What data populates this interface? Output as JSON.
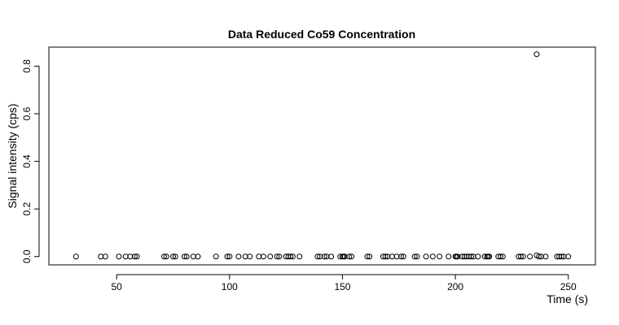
{
  "chart_data": {
    "type": "scatter",
    "title": "Data Reduced Co59 Concentration",
    "xlabel": "Time (s)",
    "ylabel": "Signal intensity (cps)",
    "xlim": [
      20,
      262
    ],
    "ylim": [
      -0.035,
      0.88
    ],
    "xticks": [
      50,
      100,
      150,
      200,
      250
    ],
    "yticks": [
      0.0,
      0.2,
      0.4,
      0.6,
      0.8
    ],
    "xtick_labels": [
      "50",
      "100",
      "150",
      "200",
      "250"
    ],
    "ytick_labels": [
      "0.0",
      "0.2",
      "0.4",
      "0.6",
      "0.8"
    ],
    "marker": "open-circle",
    "grid": false,
    "points": [
      {
        "x": 32,
        "y": 0
      },
      {
        "x": 43,
        "y": 0
      },
      {
        "x": 45,
        "y": 0
      },
      {
        "x": 51,
        "y": 0
      },
      {
        "x": 54,
        "y": 0
      },
      {
        "x": 56,
        "y": 0
      },
      {
        "x": 58,
        "y": 0
      },
      {
        "x": 59,
        "y": 0
      },
      {
        "x": 71,
        "y": 0
      },
      {
        "x": 72,
        "y": 0
      },
      {
        "x": 75,
        "y": 0
      },
      {
        "x": 76,
        "y": 0
      },
      {
        "x": 80,
        "y": 0
      },
      {
        "x": 81,
        "y": 0
      },
      {
        "x": 84,
        "y": 0
      },
      {
        "x": 86,
        "y": 0
      },
      {
        "x": 94,
        "y": 0
      },
      {
        "x": 99,
        "y": 0
      },
      {
        "x": 100,
        "y": 0
      },
      {
        "x": 104,
        "y": 0
      },
      {
        "x": 107,
        "y": 0
      },
      {
        "x": 109,
        "y": 0
      },
      {
        "x": 113,
        "y": 0
      },
      {
        "x": 115,
        "y": 0
      },
      {
        "x": 118,
        "y": 0
      },
      {
        "x": 121,
        "y": 0
      },
      {
        "x": 122,
        "y": 0
      },
      {
        "x": 125,
        "y": 0
      },
      {
        "x": 126,
        "y": 0
      },
      {
        "x": 127,
        "y": 0
      },
      {
        "x": 128,
        "y": 0
      },
      {
        "x": 131,
        "y": 0
      },
      {
        "x": 139,
        "y": 0
      },
      {
        "x": 140,
        "y": 0
      },
      {
        "x": 142,
        "y": 0
      },
      {
        "x": 143,
        "y": 0
      },
      {
        "x": 145,
        "y": 0
      },
      {
        "x": 149,
        "y": 0
      },
      {
        "x": 150,
        "y": 0
      },
      {
        "x": 150.5,
        "y": 0
      },
      {
        "x": 151,
        "y": 0
      },
      {
        "x": 153,
        "y": 0
      },
      {
        "x": 154,
        "y": 0
      },
      {
        "x": 161,
        "y": 0
      },
      {
        "x": 162,
        "y": 0
      },
      {
        "x": 168,
        "y": 0
      },
      {
        "x": 169,
        "y": 0
      },
      {
        "x": 170,
        "y": 0
      },
      {
        "x": 172,
        "y": 0
      },
      {
        "x": 174,
        "y": 0
      },
      {
        "x": 176,
        "y": 0
      },
      {
        "x": 177,
        "y": 0
      },
      {
        "x": 182,
        "y": 0
      },
      {
        "x": 183,
        "y": 0
      },
      {
        "x": 187,
        "y": 0
      },
      {
        "x": 190,
        "y": 0
      },
      {
        "x": 193,
        "y": 0
      },
      {
        "x": 197,
        "y": 0
      },
      {
        "x": 200,
        "y": 0
      },
      {
        "x": 200.5,
        "y": 0
      },
      {
        "x": 201,
        "y": 0
      },
      {
        "x": 203,
        "y": 0
      },
      {
        "x": 204,
        "y": 0
      },
      {
        "x": 205,
        "y": 0
      },
      {
        "x": 206,
        "y": 0
      },
      {
        "x": 207,
        "y": 0
      },
      {
        "x": 208,
        "y": 0
      },
      {
        "x": 210,
        "y": 0
      },
      {
        "x": 213,
        "y": 0
      },
      {
        "x": 214,
        "y": 0
      },
      {
        "x": 214.5,
        "y": 0
      },
      {
        "x": 215,
        "y": 0
      },
      {
        "x": 219,
        "y": 0
      },
      {
        "x": 220,
        "y": 0
      },
      {
        "x": 221,
        "y": 0
      },
      {
        "x": 228,
        "y": 0
      },
      {
        "x": 229,
        "y": 0
      },
      {
        "x": 230,
        "y": 0
      },
      {
        "x": 233,
        "y": 0
      },
      {
        "x": 236,
        "y": 0.85
      },
      {
        "x": 236,
        "y": 0.005
      },
      {
        "x": 237,
        "y": 0
      },
      {
        "x": 238,
        "y": 0
      },
      {
        "x": 240,
        "y": 0
      },
      {
        "x": 245,
        "y": 0
      },
      {
        "x": 246,
        "y": 0
      },
      {
        "x": 247,
        "y": 0
      },
      {
        "x": 248,
        "y": 0
      },
      {
        "x": 250,
        "y": 0
      }
    ]
  }
}
